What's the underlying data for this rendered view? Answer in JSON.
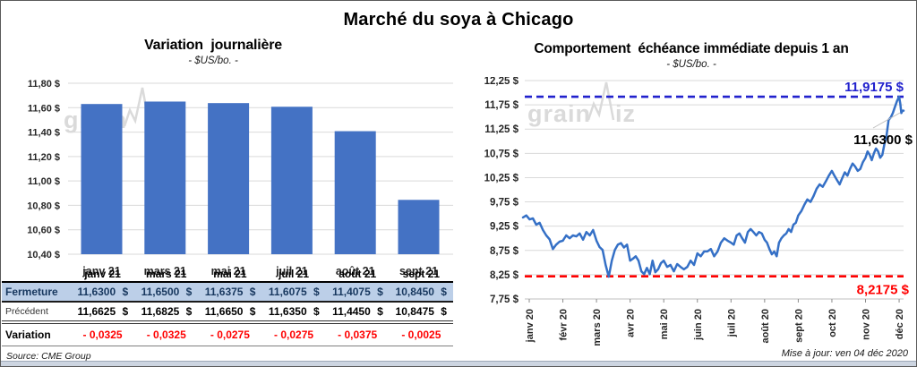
{
  "frame": {
    "main_title": "Marché du soya à Chicago",
    "source": "Source: CME Group",
    "updated": "Mise à jour: ven 04 déc 2020",
    "watermark": {
      "prefix": "grain",
      "suffix": "iz"
    }
  },
  "colors": {
    "bar": "#4472C4",
    "line": "#3570C6",
    "high_line": "#2121CD",
    "low_line": "#FF0000",
    "last_label": "#000000",
    "variation_text": "#FF0000",
    "fermeture_bg": "#BCCFE8",
    "fermeture_text": "#17375E",
    "grid": "#D9D9D9",
    "watermark": "#DADADA",
    "axis_text": "#262626"
  },
  "chart_data": [
    {
      "type": "bar",
      "title": "Variation  journalière",
      "subtitle": "- $US/bo. -",
      "categories": [
        "janv 21",
        "mars 21",
        "mai 21",
        "juil 21",
        "août 21",
        "sept 21"
      ],
      "values": [
        11.63,
        11.65,
        11.6375,
        11.6075,
        11.4075,
        10.845
      ],
      "ylim": [
        10.4,
        11.8
      ],
      "ytick_values": [
        11.8,
        11.6,
        11.4,
        11.2,
        11.0,
        10.8,
        10.6,
        10.4
      ],
      "ytick_labels": [
        "11,80 $",
        "11,60 $",
        "11,40 $",
        "11,20 $",
        "11,00 $",
        "10,80 $",
        "10,60 $",
        "10,40 $"
      ],
      "grid": true,
      "legend": "none",
      "unit": "$US/bo."
    },
    {
      "type": "line",
      "title": "Comportement  échéance immédiate depuis 1 an",
      "subtitle": "- $US/bo. -",
      "x_labels": [
        "janv 20",
        "févr 20",
        "mars 20",
        "avr 20",
        "mai 20",
        "juin 20",
        "juil 20",
        "août 20",
        "sept 20",
        "oct 20",
        "nov 20",
        "déc 20"
      ],
      "ylim": [
        7.75,
        12.25
      ],
      "ytick_values": [
        12.25,
        11.75,
        11.25,
        10.75,
        10.25,
        9.75,
        9.25,
        8.75,
        8.25,
        7.75
      ],
      "ytick_labels": [
        "12,25 $",
        "11,75 $",
        "11,25 $",
        "10,75 $",
        "10,25 $",
        "9,75 $",
        "9,25 $",
        "8,75 $",
        "8,25 $",
        "7,75 $"
      ],
      "grid": true,
      "legend": "none",
      "unit": "$US/bo.",
      "series": [
        [
          9.43,
          9.47,
          9.39,
          9.41,
          9.28,
          9.32,
          9.17,
          9.06,
          8.98,
          8.78,
          8.87,
          8.93
        ],
        [
          8.95,
          9.06,
          9.0,
          9.06,
          9.04,
          9.1,
          8.97,
          9.13,
          9.06,
          9.17
        ],
        [
          8.95,
          8.82,
          8.76,
          8.45,
          8.21,
          8.54,
          8.76,
          8.87,
          8.9,
          8.81,
          8.87
        ],
        [
          8.54,
          8.58,
          8.63,
          8.54,
          8.32,
          8.26,
          8.39,
          8.26,
          8.54,
          8.3,
          8.36,
          8.49
        ],
        [
          8.54,
          8.41,
          8.45,
          8.32,
          8.47,
          8.41,
          8.36,
          8.41,
          8.54,
          8.45
        ],
        [
          8.69,
          8.63,
          8.73,
          8.73,
          8.78,
          8.63,
          8.73,
          8.91,
          9.0,
          8.95
        ],
        [
          8.91,
          8.87,
          9.06,
          9.1,
          9.0,
          8.91,
          9.13,
          9.19,
          9.13,
          9.06,
          9.13,
          9.1
        ],
        [
          8.97,
          8.91,
          8.78,
          8.67,
          8.73,
          8.63,
          8.91,
          9.0,
          9.06,
          9.1,
          9.19,
          9.13,
          9.28,
          9.32
        ],
        [
          9.47,
          9.56,
          9.69,
          9.8,
          9.75,
          9.87,
          10.02,
          10.11,
          10.06,
          10.17,
          10.29
        ],
        [
          10.39,
          10.29,
          10.2,
          10.11,
          10.24,
          10.36,
          10.29,
          10.43,
          10.54,
          10.48,
          10.39,
          10.43,
          10.57
        ],
        [
          10.66,
          10.79,
          10.72,
          10.61,
          10.75,
          10.85,
          10.79,
          10.66,
          10.72,
          10.94,
          11.12,
          11.44,
          11.49,
          11.58,
          11.71,
          11.83
        ],
        [
          11.9175,
          11.78,
          11.58,
          11.63
        ]
      ],
      "high_line": {
        "value": 11.9175,
        "label": "11,9175 $"
      },
      "low_line": {
        "value": 8.2175,
        "label": "8,2175 $"
      },
      "last_point": {
        "value": 11.63,
        "label": "11,6300 $"
      }
    }
  ],
  "table": {
    "col_headers": [
      "janv 21",
      "mars 21",
      "mai 21",
      "juil 21",
      "août 21",
      "sept 21"
    ],
    "currency": "$",
    "rows": [
      {
        "label": "Fermeture",
        "values": [
          "11,6300",
          "11,6500",
          "11,6375",
          "11,6075",
          "11,4075",
          "10,8450"
        ],
        "with_currency": true
      },
      {
        "label": "Précédent",
        "values": [
          "11,6625",
          "11,6825",
          "11,6650",
          "11,6350",
          "11,4450",
          "10,8475"
        ],
        "with_currency": true
      },
      {
        "label": "Variation",
        "values": [
          "- 0,0325",
          "- 0,0325",
          "- 0,0275",
          "- 0,0275",
          "- 0,0375",
          "- 0,0025"
        ],
        "with_currency": false
      }
    ]
  }
}
